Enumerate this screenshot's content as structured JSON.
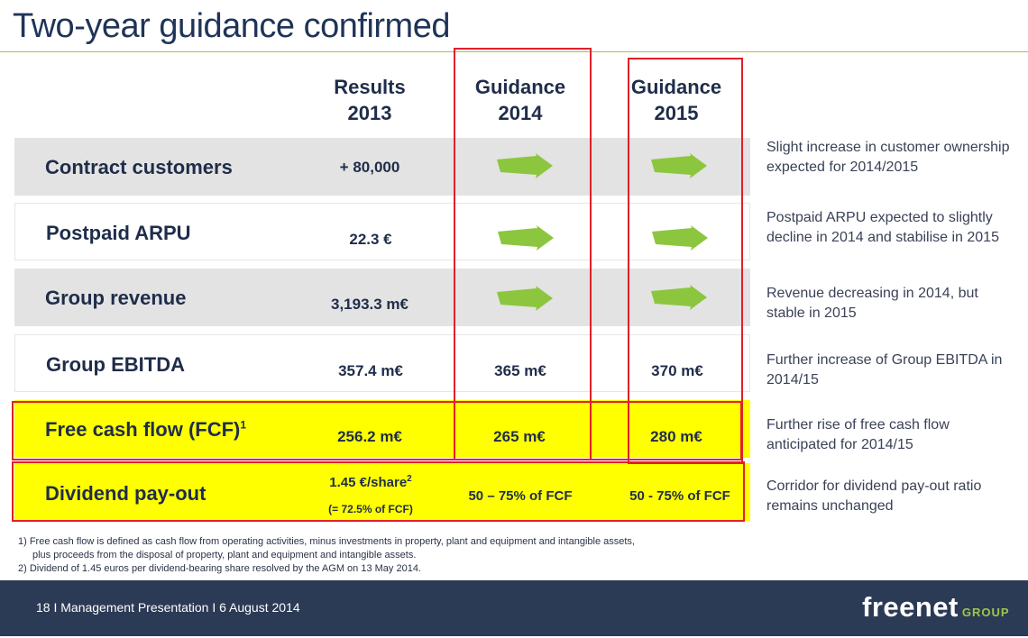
{
  "title": "Two-year guidance confirmed",
  "headers": {
    "results": [
      "Results",
      "2013"
    ],
    "guidance_2014": [
      "Guidance",
      "2014"
    ],
    "guidance_2015": [
      "Guidance",
      "2015"
    ]
  },
  "rows": [
    {
      "label": "Contract customers",
      "results": "+ 80,000",
      "g2014": "",
      "g2015": "",
      "note": "Slight increase in customer ownership expected for 2014/2015"
    },
    {
      "label": "Postpaid ARPU",
      "results": "22.3 €",
      "g2014": "",
      "g2015": "",
      "note": "Postpaid ARPU expected to slightly decline in 2014 and stabilise in 2015"
    },
    {
      "label": "Group revenue",
      "results": "3,193.3 m€",
      "g2014": "",
      "g2015": "",
      "note": "Revenue decreasing in 2014, but stable in 2015"
    },
    {
      "label": "Group EBITDA",
      "results": "357.4 m€",
      "g2014": "365 m€",
      "g2015": "370 m€",
      "note": "Further increase of Group EBITDA in 2014/15"
    },
    {
      "label": "Free cash flow (FCF)",
      "label_sup": "1",
      "results": "256.2 m€",
      "g2014": "265 m€",
      "g2015": "280 m€",
      "note": "Further rise of free cash flow anticipated for 2014/15"
    },
    {
      "label": "Dividend pay-out",
      "results": "1.45 €/share",
      "results_sup": "2",
      "results_sub": "(= 72.5% of FCF)",
      "g2014": "50 – 75% of FCF",
      "g2015": "50 - 75% of FCF",
      "note": "Corridor for dividend pay-out ratio remains unchanged"
    }
  ],
  "footnotes": [
    "1) Free cash flow is defined as cash flow from operating activities, minus investments in property, plant and equipment and intangible assets,",
    "plus proceeds from the disposal of property, plant and equipment and intangible assets.",
    "2) Dividend of 1.45 euros per dividend-bearing share resolved by the AGM on 13 May 2014."
  ],
  "footer": {
    "text": "18  I  Management Presentation  I  6 August 2014",
    "logo_main": "freenet",
    "logo_sub": "GROUP"
  },
  "colors": {
    "arrow": "#8cc63f",
    "highlight": "#ffff00",
    "frame": "#e0202a",
    "footer_bar": "#2b3a55"
  }
}
